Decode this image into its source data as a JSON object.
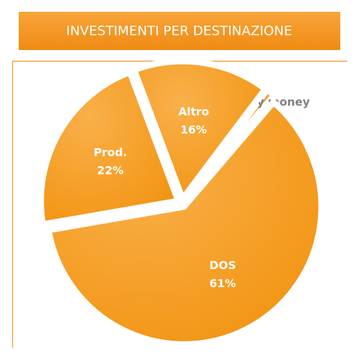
{
  "chart_data": {
    "type": "pie",
    "title": "INVESTIMENTI PER DESTINAZIONE",
    "categories": [
      "Key money",
      "DOS",
      "Prod.",
      "Altro"
    ],
    "values": [
      1,
      61,
      22,
      16
    ],
    "value_labels": [
      "1%",
      "61%",
      "22%",
      "16%"
    ],
    "color": "#f7a12c"
  }
}
